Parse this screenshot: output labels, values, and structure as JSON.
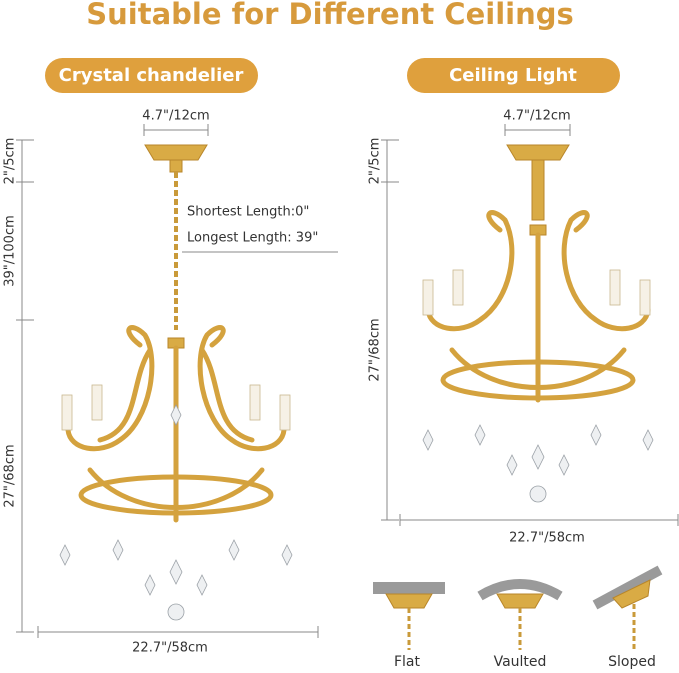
{
  "title": "Suitable for Different Ceilings",
  "left": {
    "label": "Crystal chandelier",
    "canopy_width": "4.7\"/12cm",
    "canopy_height": "2\"/5cm",
    "chain_length": "39\"/100cm",
    "body_height": "27\"/68cm",
    "body_width": "22.7\"/58cm",
    "shortest": "Shortest Length:0\"",
    "longest": "Longest Length: 39\""
  },
  "right": {
    "label": "Ceiling Light",
    "canopy_width": "4.7\"/12cm",
    "canopy_height": "2\"/5cm",
    "body_height": "27\"/68cm",
    "body_width": "22.7\"/58cm"
  },
  "ceilings": [
    "Flat",
    "Vaulted",
    "Sloped"
  ]
}
